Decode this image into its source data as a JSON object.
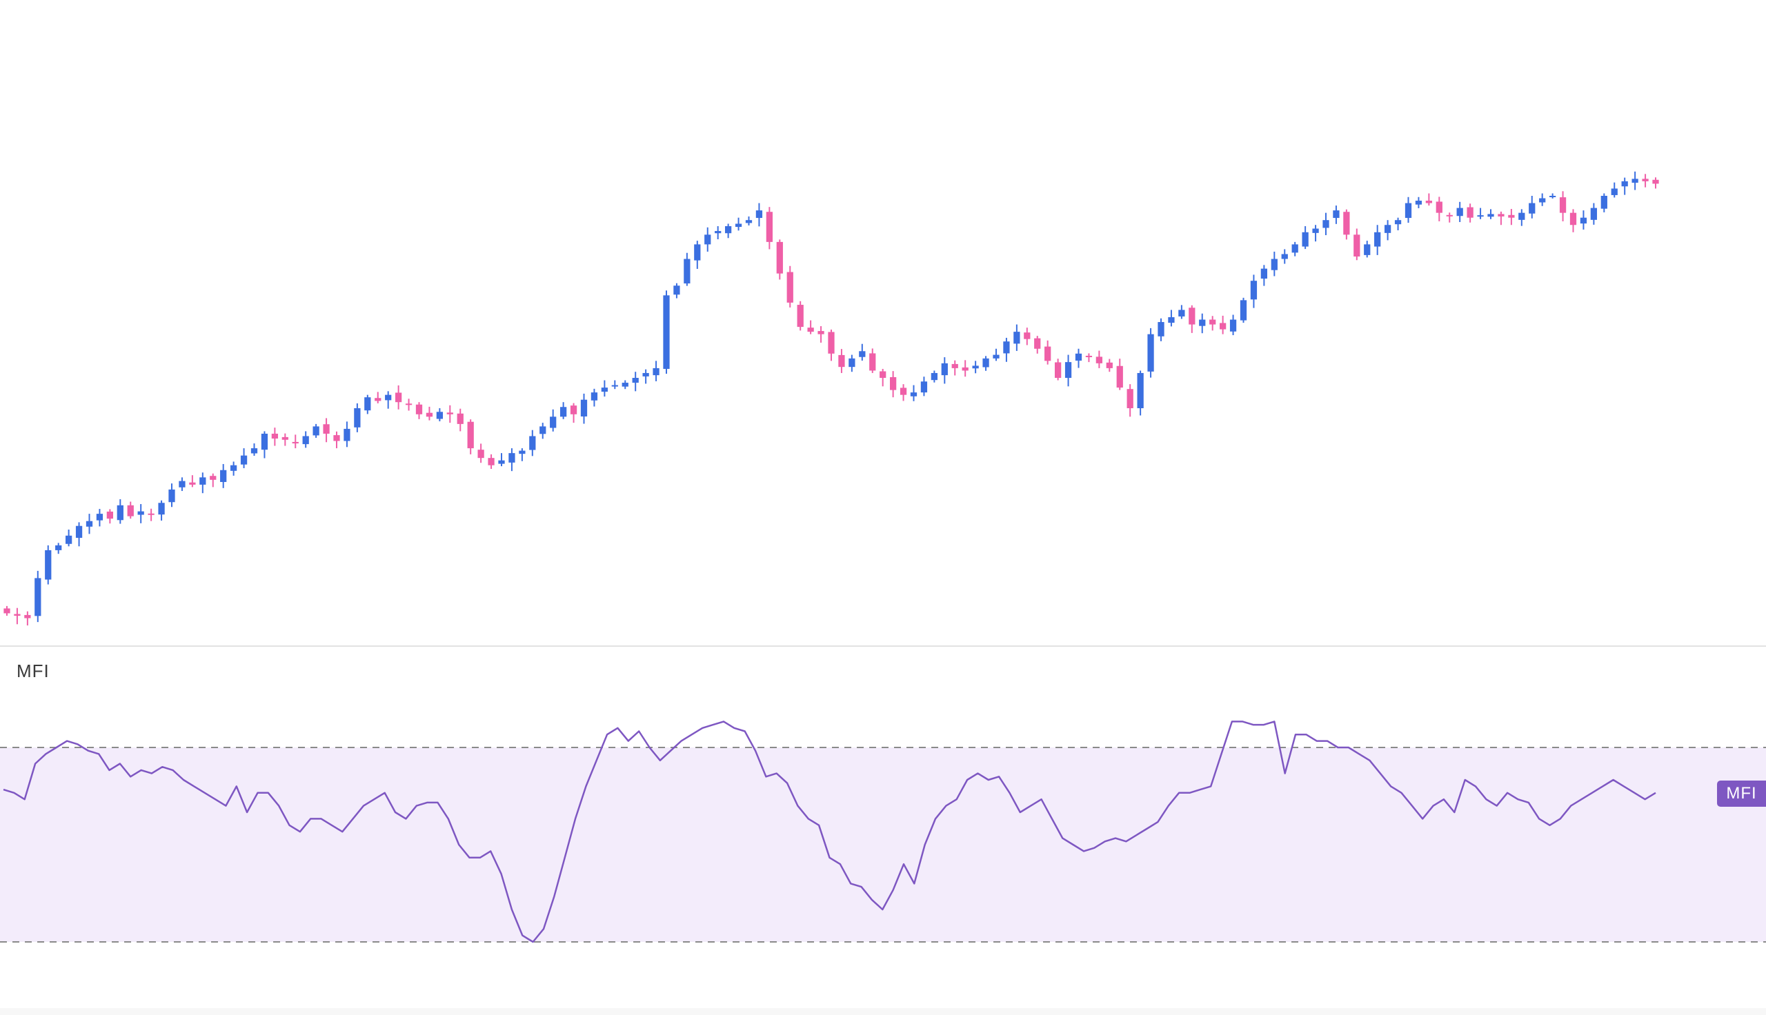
{
  "colors": {
    "up": "#3b6fe0",
    "down": "#ef5fa7",
    "mfi_line": "#7e57c2",
    "mfi_band": "#f3ecfb",
    "band_line": "#8a8a8a",
    "divider": "#e2e2e2",
    "badge": "#7e57c2"
  },
  "indicator": {
    "label": "MFI",
    "badge_label": "MFI"
  },
  "chart_data": [
    {
      "type": "candlestick",
      "title": "",
      "grid": false,
      "legend": "none",
      "up_color": "#3b6fe0",
      "down_color": "#ef5fa7",
      "ylim": [
        0,
        500
      ],
      "close_path": [
        6,
        4,
        2,
        35,
        58,
        62,
        70,
        78,
        82,
        88,
        84,
        95,
        86,
        90,
        88,
        97,
        108,
        115,
        112,
        118,
        116,
        124,
        128,
        136,
        142,
        154,
        150,
        149,
        146,
        152,
        160,
        154,
        148,
        158,
        175,
        184,
        181,
        186,
        180,
        178,
        170,
        168,
        172,
        170,
        162,
        142,
        134,
        128,
        132,
        138,
        140,
        152,
        160,
        168,
        176,
        170,
        182,
        188,
        192,
        194,
        196,
        200,
        204,
        208,
        268,
        276,
        298,
        310,
        318,
        321,
        325,
        327,
        330,
        338,
        312,
        286,
        262,
        242,
        238,
        236,
        220,
        209,
        216,
        222,
        206,
        200,
        190,
        186,
        188,
        197,
        204,
        212,
        208,
        206,
        210,
        216,
        219,
        230,
        238,
        232,
        224,
        214,
        200,
        213,
        220,
        218,
        212,
        208,
        192,
        175,
        204,
        236,
        246,
        250,
        256,
        244,
        248,
        244,
        240,
        248,
        264,
        280,
        290,
        298,
        302,
        310,
        320,
        323,
        330,
        338,
        318,
        300,
        310,
        320,
        326,
        330,
        344,
        346,
        344,
        336,
        334,
        340,
        332,
        334,
        335,
        333,
        332,
        336,
        344,
        348,
        350,
        336,
        326,
        332,
        340,
        350,
        356,
        362,
        364,
        362,
        360
      ]
    },
    {
      "type": "line",
      "title": "MFI",
      "grid": false,
      "legend": "none",
      "ylim": [
        0,
        100
      ],
      "band": [
        20,
        80
      ],
      "values": [
        67,
        66,
        64,
        75,
        78,
        80,
        82,
        81,
        79,
        78,
        73,
        75,
        71,
        73,
        72,
        74,
        73,
        70,
        68,
        66,
        64,
        62,
        68,
        60,
        66,
        66,
        62,
        56,
        54,
        58,
        58,
        56,
        54,
        58,
        62,
        64,
        66,
        60,
        58,
        62,
        63,
        63,
        58,
        50,
        46,
        46,
        48,
        41,
        30,
        22,
        20,
        24,
        34,
        46,
        58,
        68,
        76,
        84,
        86,
        82,
        85,
        80,
        76,
        79,
        82,
        84,
        86,
        87,
        88,
        86,
        85,
        79,
        71,
        72,
        69,
        62,
        58,
        56,
        46,
        44,
        38,
        37,
        33,
        30,
        36,
        44,
        38,
        50,
        58,
        62,
        64,
        70,
        72,
        70,
        71,
        66,
        60,
        62,
        64,
        58,
        52,
        50,
        48,
        49,
        51,
        52,
        51,
        53,
        55,
        57,
        62,
        66,
        66,
        67,
        68,
        78,
        88,
        88,
        87,
        87,
        88,
        72,
        84,
        84,
        82,
        82,
        80,
        80,
        78,
        76,
        72,
        68,
        66,
        62,
        58,
        62,
        64,
        60,
        70,
        68,
        64,
        62,
        66,
        64,
        63,
        58,
        56,
        58,
        62,
        64,
        66,
        68,
        70,
        68,
        66,
        64,
        66
      ]
    }
  ]
}
